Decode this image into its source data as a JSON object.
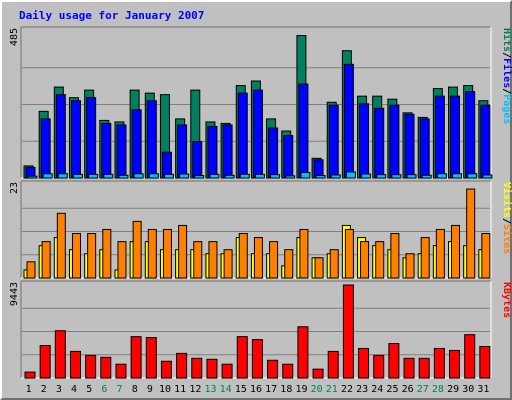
{
  "chart_data": {
    "type": "bar",
    "title": "Daily usage for January 2007",
    "categories": [
      "1",
      "2",
      "3",
      "4",
      "5",
      "6",
      "7",
      "8",
      "9",
      "10",
      "11",
      "12",
      "13",
      "14",
      "15",
      "16",
      "17",
      "18",
      "19",
      "20",
      "21",
      "22",
      "23",
      "24",
      "25",
      "26",
      "27",
      "28",
      "29",
      "30",
      "31"
    ],
    "weekend_days": [
      6,
      7,
      13,
      14,
      20,
      21,
      27,
      28
    ],
    "panels": [
      {
        "name": "hits-files-pages",
        "ymax_label": "485",
        "ymax": 485,
        "side_labels": [
          {
            "text": "Hits",
            "color": "#00805c"
          },
          {
            "text": "/",
            "color": "#000000"
          },
          {
            "text": "Files",
            "color": "#0000ff"
          },
          {
            "text": "/",
            "color": "#000000"
          },
          {
            "text": "Pages",
            "color": "#00c0ff"
          }
        ],
        "series": [
          {
            "name": "Hits",
            "color": "#00805c",
            "values": [
              40,
              220,
              300,
              265,
              290,
              190,
              185,
              290,
              280,
              275,
              195,
              290,
              185,
              180,
              305,
              320,
              195,
              155,
              470,
              65,
              250,
              420,
              270,
              270,
              260,
              215,
              200,
              295,
              300,
              305,
              255
            ]
          },
          {
            "name": "Files",
            "color": "#0000ff",
            "values": [
              35,
              195,
              275,
              255,
              265,
              180,
              175,
              225,
              255,
              85,
              175,
              120,
              170,
              175,
              280,
              290,
              165,
              140,
              310,
              60,
              240,
              375,
              245,
              230,
              240,
              210,
              195,
              270,
              270,
              285,
              240
            ]
          },
          {
            "name": "Pages",
            "color": "#00c0ff",
            "values": [
              6,
              14,
              14,
              12,
              12,
              12,
              9,
              14,
              14,
              12,
              13,
              8,
              12,
              9,
              12,
              12,
              11,
              7,
              18,
              8,
              10,
              20,
              13,
              11,
              11,
              11,
              9,
              14,
              14,
              14,
              10
            ]
          }
        ]
      },
      {
        "name": "visits-sites",
        "ymax_label": "23",
        "ymax": 23,
        "side_labels": [
          {
            "text": "Visits",
            "color": "#ffff00"
          },
          {
            "text": "/",
            "color": "#000000"
          },
          {
            "text": "Sites",
            "color": "#ff8000"
          }
        ],
        "series": [
          {
            "name": "Visits",
            "color": "#ffff00",
            "values": [
              2,
              8,
              10,
              7,
              6,
              7,
              2,
              9,
              9,
              7,
              7,
              7,
              6,
              6,
              10,
              6,
              6,
              3,
              10,
              5,
              6,
              13,
              10,
              8,
              7,
              5,
              6,
              8,
              9,
              8,
              7
            ]
          },
          {
            "name": "Sites",
            "color": "#ff8000",
            "values": [
              4,
              9,
              16,
              11,
              11,
              12,
              9,
              14,
              12,
              12,
              13,
              9,
              9,
              7,
              11,
              10,
              9,
              7,
              12,
              5,
              7,
              12,
              9,
              9,
              11,
              6,
              10,
              12,
              13,
              22,
              11
            ]
          }
        ]
      },
      {
        "name": "kbytes",
        "ymax_label": "9443",
        "ymax": 9443,
        "side_labels": [
          {
            "text": "KBytes",
            "color": "#ff0000"
          }
        ],
        "series": [
          {
            "name": "KBytes",
            "color": "#ff0000",
            "values": [
              600,
              3300,
              4800,
              2700,
              2300,
              2100,
              1400,
              4200,
              4100,
              1700,
              2500,
              2000,
              1900,
              1400,
              4200,
              3900,
              1800,
              1400,
              5200,
              900,
              2700,
              9443,
              3000,
              2300,
              3500,
              2000,
              2000,
              3000,
              2800,
              4400,
              3200
            ]
          }
        ]
      }
    ],
    "colors": {
      "background": "#c0c0c0",
      "grid": "#808080",
      "title": "#0000ff",
      "weekend_label": "#00805c"
    }
  }
}
